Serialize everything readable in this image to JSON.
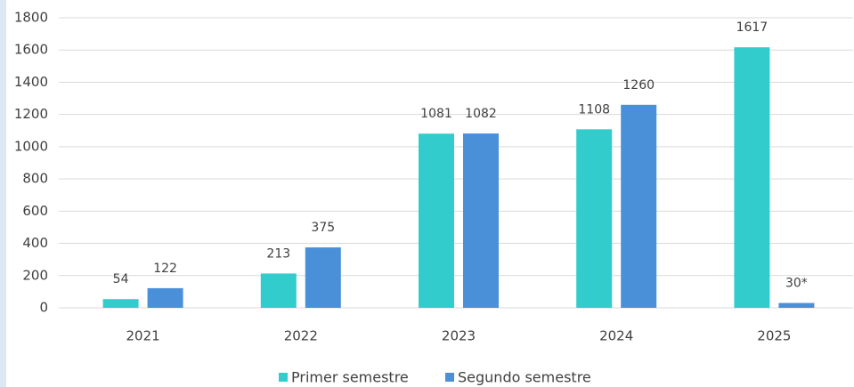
{
  "chart_data": {
    "type": "bar",
    "categories": [
      "2021",
      "2022",
      "2023",
      "2024",
      "2025"
    ],
    "series": [
      {
        "name": "Primer semestre",
        "color": "#33cccc",
        "values": [
          54,
          213,
          1081,
          1108,
          1617
        ]
      },
      {
        "name": "Segundo semestre",
        "color": "#4a90d9",
        "values": [
          122,
          375,
          1082,
          1260,
          30
        ],
        "value_labels": [
          "122",
          "375",
          "1082",
          "1260",
          "30*"
        ]
      }
    ],
    "ylim": [
      0,
      1800
    ],
    "yticks": [
      0,
      200,
      400,
      600,
      800,
      1000,
      1200,
      1400,
      1600,
      1800
    ],
    "grid": true,
    "legend": "bottom"
  }
}
